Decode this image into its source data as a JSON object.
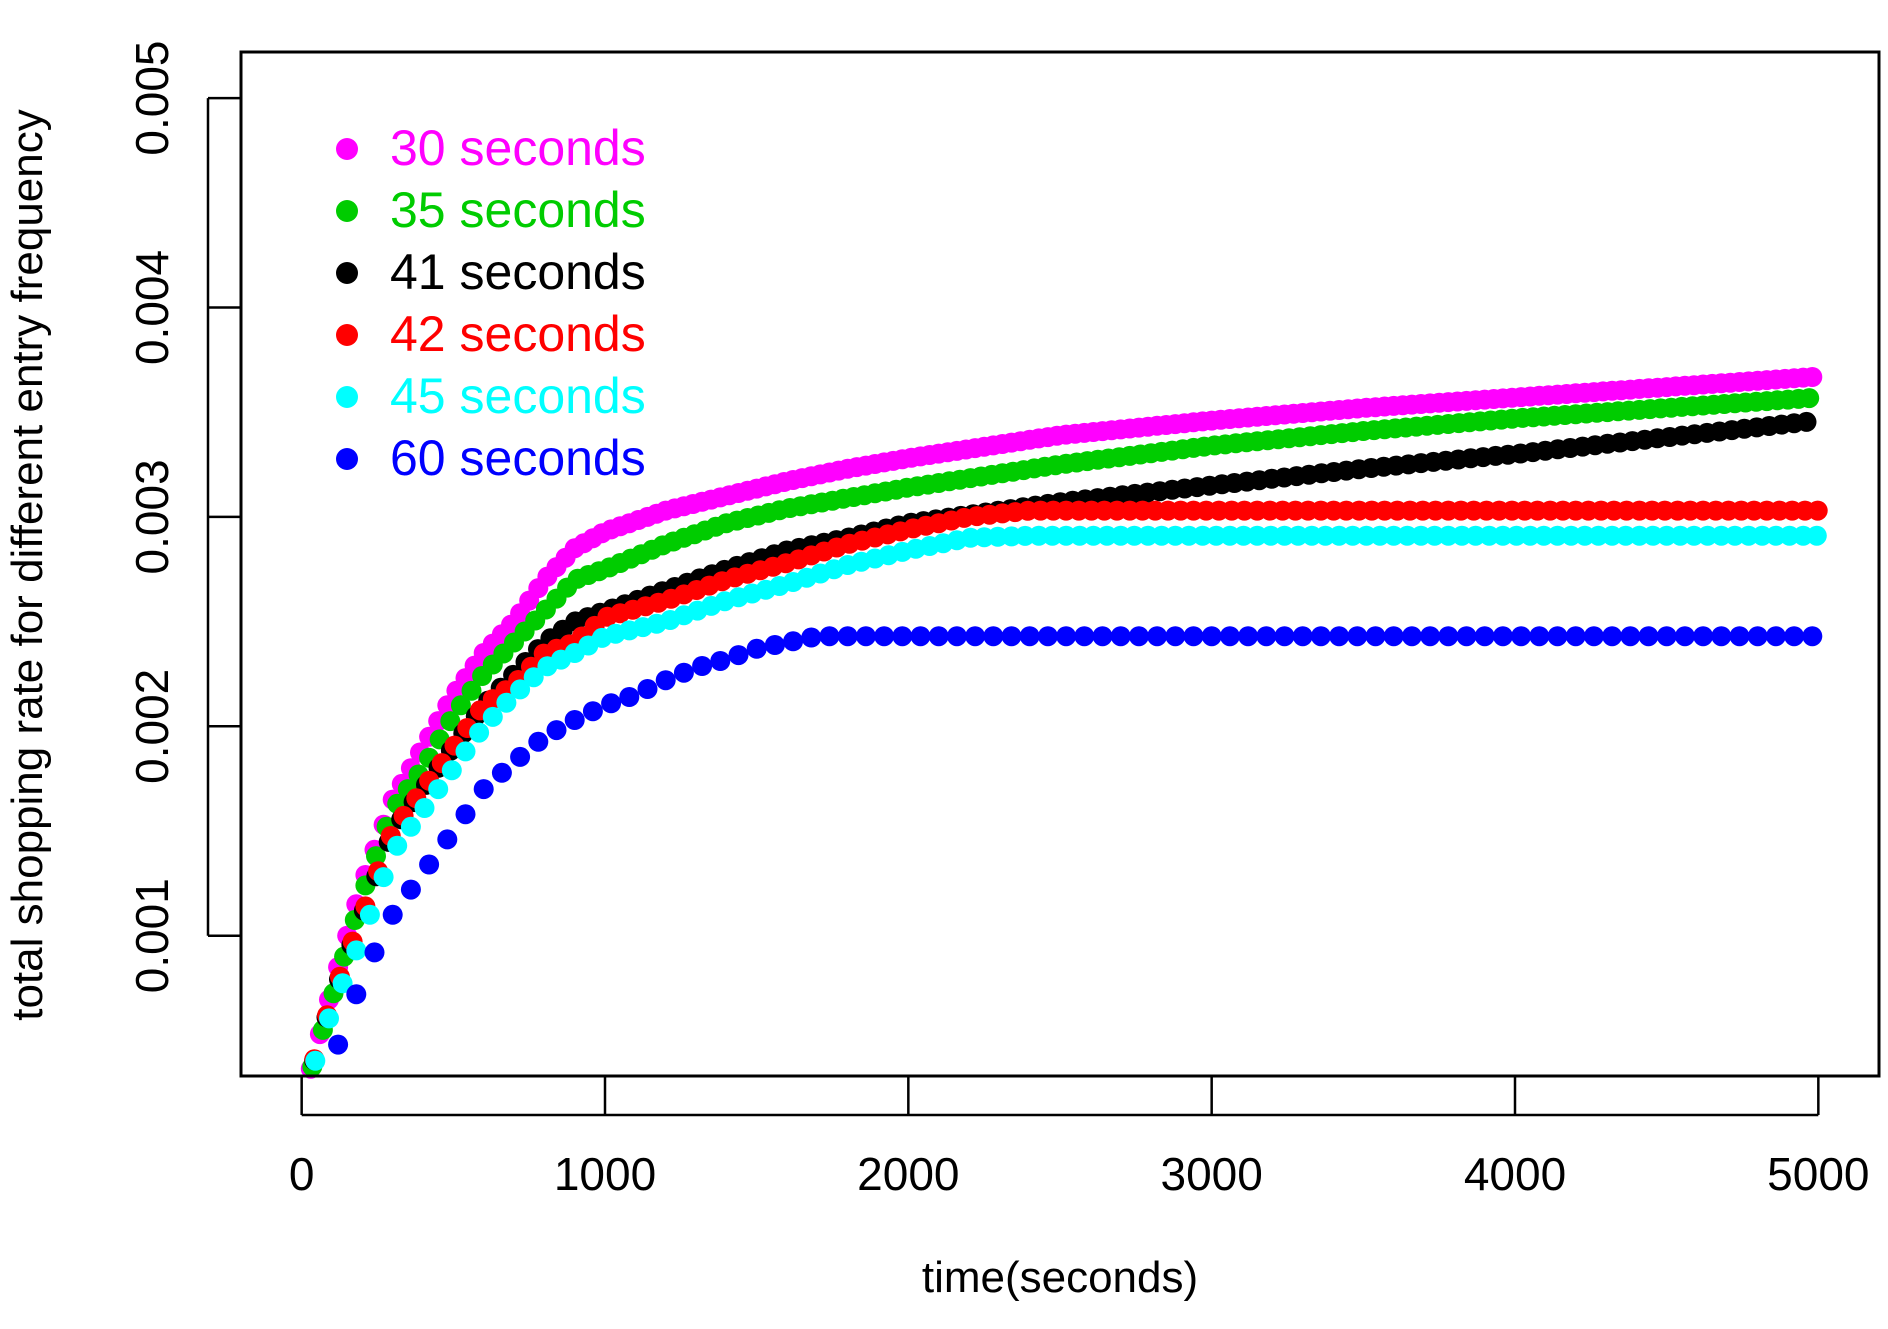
{
  "chart_data": {
    "type": "scatter",
    "title": "",
    "xlabel": "time(seconds)",
    "ylabel": "total shopping rate for different entry frequency",
    "xlim": [
      -200,
      5200
    ],
    "ylim": [
      0.00033,
      0.00522
    ],
    "x_ticks": [
      0,
      1000,
      2000,
      3000,
      4000,
      5000
    ],
    "x_tick_labels": [
      "0",
      "1000",
      "2000",
      "3000",
      "4000",
      "5000"
    ],
    "y_ticks": [
      0.001,
      0.002,
      0.003,
      0.004,
      0.005
    ],
    "y_tick_labels": [
      "0.001",
      "0.002",
      "0.003",
      "0.004",
      "0.005"
    ],
    "legend_position": "top-left",
    "series": [
      {
        "name": "30 seconds",
        "color": "#ff00ff",
        "step": 30,
        "x": [
          0,
          100,
          200,
          300,
          400,
          500,
          600,
          700,
          800,
          900,
          1000,
          1200,
          1400,
          1600,
          1800,
          2000,
          2500,
          3000,
          3500,
          4000,
          4500,
          5000
        ],
        "y": [
          0.0002,
          0.00075,
          0.00125,
          0.00165,
          0.0019,
          0.00215,
          0.00235,
          0.0025,
          0.0027,
          0.00285,
          0.00293,
          0.00303,
          0.0031,
          0.00317,
          0.00323,
          0.00328,
          0.00339,
          0.00346,
          0.00352,
          0.00357,
          0.00362,
          0.00367
        ]
      },
      {
        "name": "35 seconds",
        "color": "#00cc00",
        "step": 35,
        "x": [
          0,
          100,
          200,
          300,
          400,
          500,
          600,
          700,
          800,
          900,
          1000,
          1200,
          1400,
          1600,
          1800,
          2000,
          2500,
          3000,
          3500,
          4000,
          4500,
          5000
        ],
        "y": [
          0.0002,
          0.0007,
          0.0012,
          0.0016,
          0.0018,
          0.00205,
          0.00225,
          0.0024,
          0.00255,
          0.0027,
          0.00275,
          0.00287,
          0.00297,
          0.00304,
          0.00309,
          0.00314,
          0.00325,
          0.00334,
          0.00341,
          0.00347,
          0.00352,
          0.00357
        ]
      },
      {
        "name": "41 seconds",
        "color": "#000000",
        "step": 41,
        "x": [
          0,
          100,
          200,
          300,
          400,
          500,
          600,
          700,
          800,
          900,
          1000,
          1200,
          1400,
          1600,
          1800,
          2000,
          2500,
          3000,
          3500,
          4000,
          4500,
          5000
        ],
        "y": [
          0.0002,
          0.0007,
          0.0011,
          0.0015,
          0.0017,
          0.0019,
          0.0021,
          0.00225,
          0.0024,
          0.0025,
          0.00255,
          0.00265,
          0.00275,
          0.00284,
          0.0029,
          0.00297,
          0.00307,
          0.00315,
          0.00323,
          0.0033,
          0.00338,
          0.00346
        ]
      },
      {
        "name": "42 seconds",
        "color": "#ff0000",
        "step": 42,
        "x": [
          0,
          100,
          200,
          300,
          400,
          500,
          600,
          700,
          800,
          900,
          1000,
          1200,
          1400,
          1600,
          1800,
          2000,
          2200,
          2400,
          2600,
          3000,
          4000,
          5000
        ],
        "y": [
          0.0002,
          0.0007,
          0.0011,
          0.0015,
          0.0017,
          0.0019,
          0.0021,
          0.0022,
          0.00235,
          0.0024,
          0.00252,
          0.0026,
          0.0027,
          0.00278,
          0.00287,
          0.00294,
          0.003,
          0.00303,
          0.00303,
          0.00303,
          0.00303,
          0.00303
        ]
      },
      {
        "name": "45 seconds",
        "color": "#00ffff",
        "step": 45,
        "x": [
          0,
          100,
          200,
          300,
          400,
          500,
          600,
          700,
          800,
          900,
          1000,
          1200,
          1400,
          1600,
          1800,
          2000,
          2200,
          2400,
          2600,
          3000,
          4000,
          5000
        ],
        "y": [
          0.0002,
          0.00065,
          0.001,
          0.0014,
          0.0016,
          0.0018,
          0.002,
          0.00215,
          0.00228,
          0.00235,
          0.00243,
          0.0025,
          0.0026,
          0.00268,
          0.00277,
          0.00284,
          0.0029,
          0.00291,
          0.00291,
          0.00291,
          0.00291,
          0.00291
        ]
      },
      {
        "name": "60 seconds",
        "color": "#0000ff",
        "step": 60,
        "x": [
          0,
          100,
          200,
          300,
          400,
          500,
          600,
          700,
          800,
          900,
          1000,
          1100,
          1200,
          1300,
          1400,
          1500,
          1600,
          1700,
          2000,
          3000,
          4000,
          5000
        ],
        "y": [
          0.0002,
          0.0004,
          0.0008,
          0.0011,
          0.0013,
          0.0015,
          0.0017,
          0.00183,
          0.00195,
          0.00203,
          0.0021,
          0.00215,
          0.00222,
          0.00228,
          0.00232,
          0.00237,
          0.0024,
          0.00243,
          0.00243,
          0.00243,
          0.00243,
          0.00243
        ]
      }
    ]
  }
}
